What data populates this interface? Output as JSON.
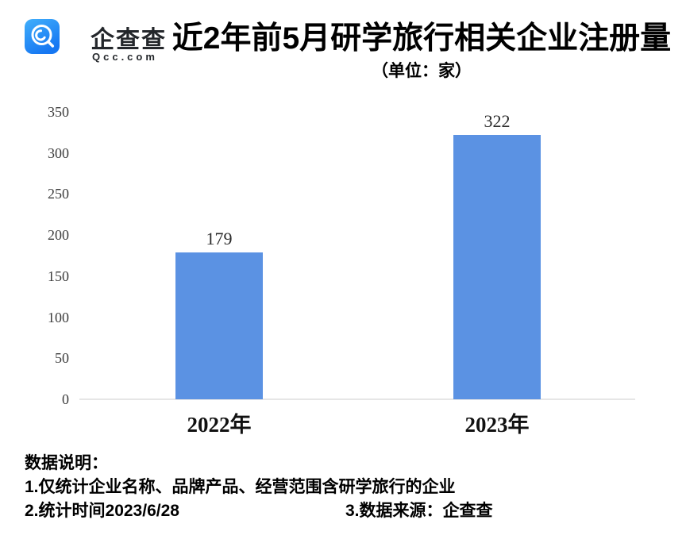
{
  "header": {
    "logo_name": "企查查",
    "logo_domain": "Qcc.com",
    "title": "近2年前5月研学旅行相关企业注册量",
    "subtitle": "（单位：家）"
  },
  "chart_data": {
    "type": "bar",
    "title": "近2年前5月研学旅行相关企业注册量",
    "unit_label": "（单位：家）",
    "categories": [
      "2022年",
      "2023年"
    ],
    "values": [
      179,
      322
    ],
    "value_labels": [
      "179",
      "322"
    ],
    "yticks": [
      0,
      50,
      100,
      150,
      200,
      250,
      300,
      350
    ],
    "ylim": [
      0,
      350
    ],
    "grid": false,
    "legend": "none",
    "bar_color": "#5b92e3",
    "axis_line_color": "#e6e6e6",
    "xlabel": "",
    "ylabel": ""
  },
  "notes": {
    "heading": "数据说明：",
    "line1": "1.仅统计企业名称、品牌产品、经营范围含研学旅行的企业",
    "line2": "2.统计时间2023/6/28",
    "line3": "3.数据来源：企查查"
  }
}
